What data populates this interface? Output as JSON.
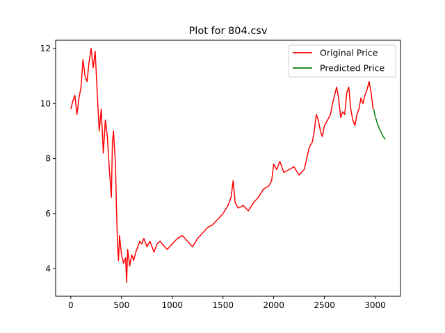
{
  "chart_data": {
    "type": "line",
    "title": "Plot for 804.csv",
    "xlabel": "",
    "ylabel": "",
    "xlim": [
      -150,
      3250
    ],
    "ylim": [
      3.0,
      12.3
    ],
    "x_ticks": [
      0,
      500,
      1000,
      1500,
      2000,
      2500,
      3000
    ],
    "y_ticks": [
      4,
      6,
      8,
      10,
      12
    ],
    "grid": false,
    "legend_placement": "top-right",
    "series": [
      {
        "name": "Original Price",
        "color": "#ff0000",
        "points": [
          [
            0,
            9.8
          ],
          [
            20,
            10.1
          ],
          [
            40,
            10.3
          ],
          [
            60,
            9.6
          ],
          [
            80,
            10.2
          ],
          [
            100,
            10.6
          ],
          [
            120,
            11.6
          ],
          [
            140,
            11.0
          ],
          [
            160,
            10.8
          ],
          [
            180,
            11.5
          ],
          [
            200,
            12.0
          ],
          [
            220,
            11.3
          ],
          [
            240,
            11.9
          ],
          [
            260,
            10.4
          ],
          [
            280,
            9.0
          ],
          [
            300,
            9.8
          ],
          [
            320,
            8.2
          ],
          [
            340,
            9.4
          ],
          [
            360,
            8.8
          ],
          [
            380,
            7.6
          ],
          [
            400,
            6.6
          ],
          [
            410,
            8.6
          ],
          [
            420,
            9.0
          ],
          [
            430,
            8.4
          ],
          [
            440,
            7.8
          ],
          [
            450,
            6.2
          ],
          [
            460,
            4.9
          ],
          [
            470,
            4.3
          ],
          [
            480,
            5.2
          ],
          [
            500,
            4.5
          ],
          [
            520,
            4.2
          ],
          [
            540,
            4.4
          ],
          [
            550,
            3.5
          ],
          [
            560,
            4.7
          ],
          [
            580,
            4.1
          ],
          [
            600,
            4.5
          ],
          [
            620,
            4.3
          ],
          [
            640,
            4.6
          ],
          [
            660,
            4.8
          ],
          [
            680,
            5.0
          ],
          [
            700,
            4.9
          ],
          [
            720,
            5.1
          ],
          [
            750,
            4.8
          ],
          [
            780,
            5.0
          ],
          [
            800,
            4.8
          ],
          [
            820,
            4.6
          ],
          [
            850,
            4.9
          ],
          [
            880,
            5.0
          ],
          [
            900,
            4.9
          ],
          [
            950,
            4.7
          ],
          [
            1000,
            4.9
          ],
          [
            1050,
            5.1
          ],
          [
            1100,
            5.2
          ],
          [
            1150,
            5.0
          ],
          [
            1200,
            4.8
          ],
          [
            1250,
            5.1
          ],
          [
            1300,
            5.3
          ],
          [
            1350,
            5.5
          ],
          [
            1400,
            5.6
          ],
          [
            1450,
            5.8
          ],
          [
            1500,
            6.0
          ],
          [
            1550,
            6.3
          ],
          [
            1580,
            6.6
          ],
          [
            1600,
            7.2
          ],
          [
            1620,
            6.4
          ],
          [
            1650,
            6.2
          ],
          [
            1700,
            6.3
          ],
          [
            1750,
            6.1
          ],
          [
            1800,
            6.4
          ],
          [
            1850,
            6.6
          ],
          [
            1900,
            6.9
          ],
          [
            1950,
            7.0
          ],
          [
            1980,
            7.2
          ],
          [
            2000,
            7.8
          ],
          [
            2030,
            7.6
          ],
          [
            2060,
            7.9
          ],
          [
            2100,
            7.5
          ],
          [
            2150,
            7.6
          ],
          [
            2200,
            7.7
          ],
          [
            2250,
            7.4
          ],
          [
            2300,
            7.6
          ],
          [
            2320,
            7.9
          ],
          [
            2350,
            8.4
          ],
          [
            2380,
            8.6
          ],
          [
            2400,
            9.0
          ],
          [
            2420,
            9.6
          ],
          [
            2440,
            9.4
          ],
          [
            2460,
            9.0
          ],
          [
            2480,
            8.8
          ],
          [
            2500,
            9.2
          ],
          [
            2530,
            9.4
          ],
          [
            2560,
            9.6
          ],
          [
            2580,
            10.0
          ],
          [
            2600,
            10.3
          ],
          [
            2620,
            10.6
          ],
          [
            2640,
            10.2
          ],
          [
            2660,
            9.5
          ],
          [
            2680,
            9.7
          ],
          [
            2700,
            9.6
          ],
          [
            2720,
            10.4
          ],
          [
            2740,
            10.6
          ],
          [
            2760,
            9.8
          ],
          [
            2780,
            9.4
          ],
          [
            2800,
            9.2
          ],
          [
            2820,
            9.6
          ],
          [
            2840,
            9.8
          ],
          [
            2860,
            10.2
          ],
          [
            2880,
            10.0
          ],
          [
            2900,
            10.3
          ],
          [
            2920,
            10.5
          ],
          [
            2940,
            10.8
          ],
          [
            2960,
            10.4
          ],
          [
            2980,
            9.8
          ]
        ]
      },
      {
        "name": "Predicted Price",
        "color": "#008000",
        "points": [
          [
            2985,
            9.8
          ],
          [
            3000,
            9.55
          ],
          [
            3020,
            9.3
          ],
          [
            3040,
            9.1
          ],
          [
            3060,
            8.95
          ],
          [
            3080,
            8.8
          ],
          [
            3100,
            8.7
          ]
        ]
      }
    ]
  }
}
